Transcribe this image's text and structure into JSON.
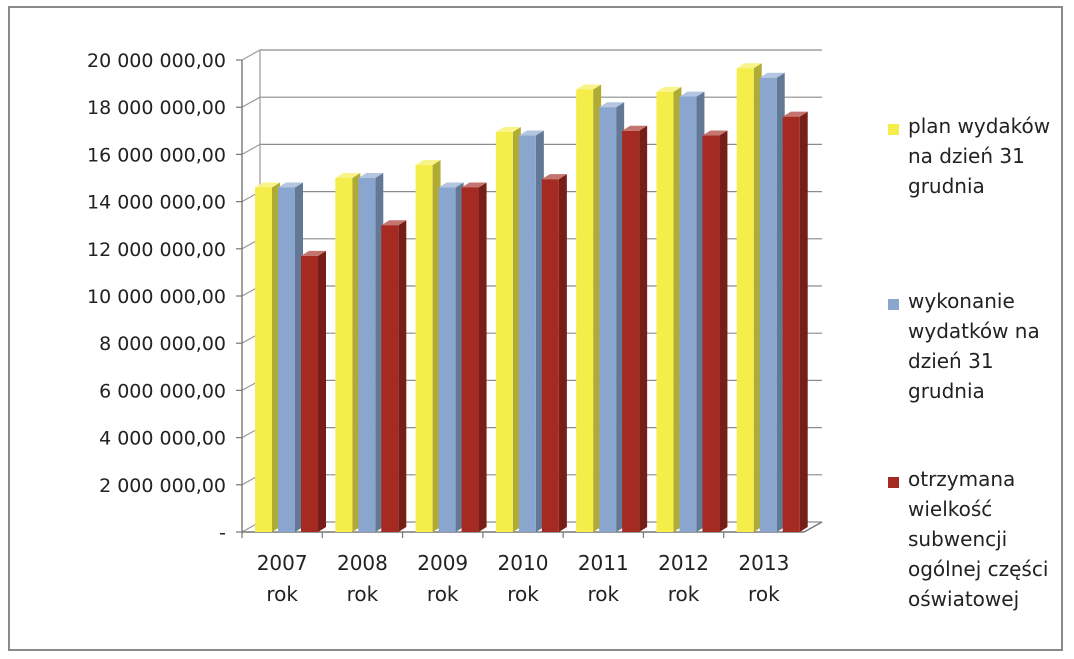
{
  "chart_data": {
    "type": "bar",
    "categories": [
      "2007 rok",
      "2008 rok",
      "2009 rok",
      "2010 rok",
      "2011 rok",
      "2012 rok",
      "2013 rok"
    ],
    "series": [
      {
        "name": "plan wydaków na dzień 31 grudnia",
        "color": "#f5ee4a",
        "values": [
          14600000,
          15000000,
          15550000,
          16950000,
          18750000,
          18650000,
          19650000
        ]
      },
      {
        "name": "wykonanie wydatków na dzień 31 grudnia",
        "color": "#8aa6cf",
        "values": [
          14600000,
          15000000,
          14600000,
          16800000,
          18000000,
          18450000,
          19250000
        ]
      },
      {
        "name": "otrzymana wielkość subwencji ogólnej części oświatowej",
        "color": "#a52a22",
        "values": [
          11700000,
          13000000,
          14600000,
          14950000,
          17000000,
          16800000,
          17600000
        ]
      }
    ],
    "ylim": [
      0,
      20000000
    ],
    "yticks": [
      0,
      2000000,
      4000000,
      6000000,
      8000000,
      10000000,
      12000000,
      14000000,
      16000000,
      18000000,
      20000000
    ],
    "ytick_labels": [
      "-",
      "2 000 000,00",
      "4 000 000,00",
      "6 000 000,00",
      "8 000 000,00",
      "10 000 000,00",
      "12 000 000,00",
      "14 000 000,00",
      "16 000 000,00",
      "18 000 000,00",
      "20 000 000,00"
    ],
    "legend_lines": [
      [
        "plan wydaków",
        "na dzień 31",
        "grudnia"
      ],
      [
        "wykonanie",
        "wydatków na",
        "dzień 31",
        "grudnia"
      ],
      [
        "otrzymana",
        "wielkość",
        "subwencji",
        "ogólnej części",
        "oświatowej"
      ]
    ],
    "legend_position": "right",
    "grid": true,
    "style": "3d-clustered-columns",
    "title": "",
    "xlabel": "",
    "ylabel": ""
  }
}
